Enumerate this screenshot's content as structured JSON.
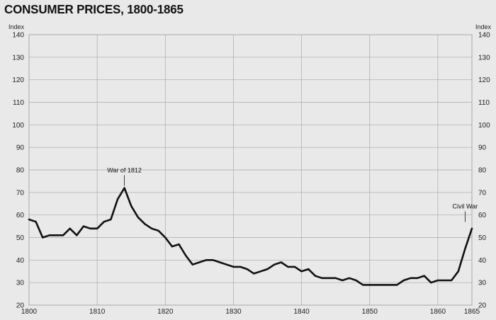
{
  "chart_data": {
    "type": "line",
    "title": "CONSUMER PRICES, 1800-1865",
    "ylabel": "Index",
    "xlim": [
      1800,
      1865
    ],
    "ylim": [
      20,
      140
    ],
    "x_ticks": [
      1800,
      1810,
      1820,
      1830,
      1840,
      1850,
      1860,
      1865
    ],
    "y_ticks": [
      20,
      30,
      40,
      50,
      60,
      70,
      80,
      90,
      100,
      110,
      120,
      130,
      140
    ],
    "grid": true,
    "x": [
      1800,
      1801,
      1802,
      1803,
      1804,
      1805,
      1806,
      1807,
      1808,
      1809,
      1810,
      1811,
      1812,
      1813,
      1814,
      1815,
      1816,
      1817,
      1818,
      1819,
      1820,
      1821,
      1822,
      1823,
      1824,
      1825,
      1826,
      1827,
      1828,
      1829,
      1830,
      1831,
      1832,
      1833,
      1834,
      1835,
      1836,
      1837,
      1838,
      1839,
      1840,
      1841,
      1842,
      1843,
      1844,
      1845,
      1846,
      1847,
      1848,
      1849,
      1850,
      1851,
      1852,
      1853,
      1854,
      1855,
      1856,
      1857,
      1858,
      1859,
      1860,
      1861,
      1862,
      1863,
      1864,
      1865
    ],
    "values": [
      58,
      57,
      50,
      51,
      51,
      51,
      54,
      51,
      55,
      54,
      54,
      57,
      58,
      67,
      72,
      64,
      59,
      56,
      54,
      53,
      50,
      46,
      47,
      42,
      38,
      39,
      40,
      40,
      39,
      38,
      37,
      37,
      36,
      34,
      35,
      36,
      38,
      39,
      37,
      37,
      35,
      36,
      33,
      32,
      32,
      32,
      31,
      32,
      31,
      29,
      29,
      29,
      29,
      29,
      29,
      31,
      32,
      32,
      33,
      30,
      31,
      31,
      31,
      35,
      45,
      54
    ],
    "annotations": [
      {
        "text": "War of 1812",
        "x": 1814,
        "y": 72
      },
      {
        "text": "Civil War",
        "x": 1864,
        "y": 56
      }
    ]
  }
}
